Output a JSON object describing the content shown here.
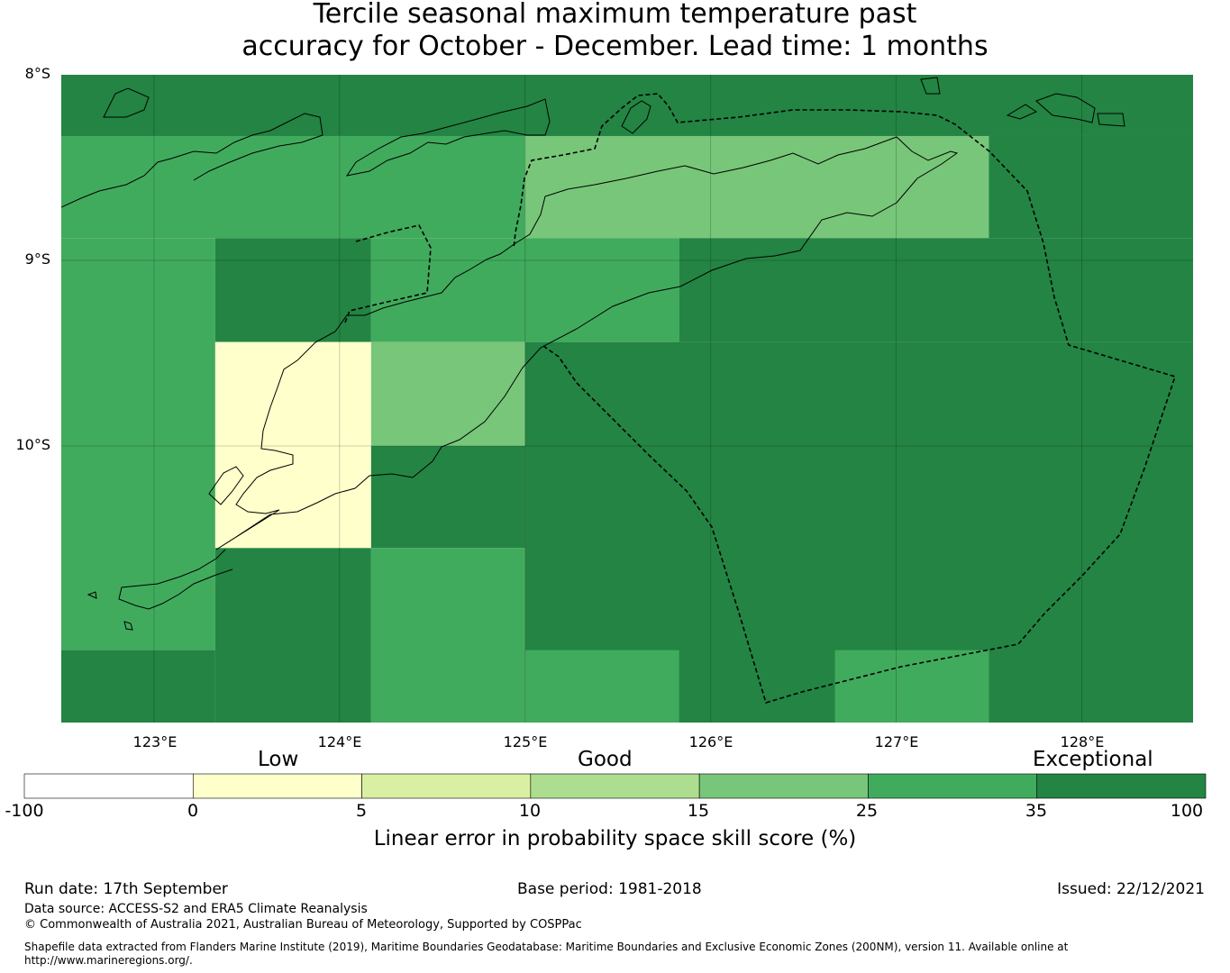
{
  "title_line1": "Tercile seasonal maximum temperature past",
  "title_line2": "accuracy for October - December. Lead time: 1 months",
  "colors": {
    "c0_5": "#ffffcc",
    "c15_25": "#78c679",
    "c25_35": "#41ab5d",
    "c35_100": "#238443",
    "colorbar": [
      "#ffffff",
      "#ffffcc",
      "#d9f0a3",
      "#addd8e",
      "#78c679",
      "#41ab5d",
      "#238443"
    ]
  },
  "lat_labels": [
    "8°S",
    "9°S",
    "10°S"
  ],
  "lon_labels": [
    "123°E",
    "124°E",
    "125°E",
    "126°E",
    "127°E",
    "128°E"
  ],
  "map": {
    "lon_range": [
      122.5,
      128.6
    ],
    "lat_range": [
      -11.5,
      -8.0
    ],
    "grid": true,
    "eez_boundary": "dashed",
    "cells": [
      {
        "lon": [
          122.5,
          128.6
        ],
        "lat": [
          -8.0,
          -8.33
        ],
        "class": "c35_100"
      },
      {
        "lon": [
          122.5,
          125.0
        ],
        "lat": [
          -8.33,
          -8.88
        ],
        "class": "c25_35"
      },
      {
        "lon": [
          125.0,
          127.5
        ],
        "lat": [
          -8.33,
          -8.88
        ],
        "class": "c15_25"
      },
      {
        "lon": [
          127.5,
          128.6
        ],
        "lat": [
          -8.33,
          -8.88
        ],
        "class": "c35_100"
      },
      {
        "lon": [
          122.5,
          123.33
        ],
        "lat": [
          -8.88,
          -11.1
        ],
        "class": "c25_35"
      },
      {
        "lon": [
          123.33,
          124.17
        ],
        "lat": [
          -8.88,
          -9.44
        ],
        "class": "c35_100"
      },
      {
        "lon": [
          124.17,
          125.83
        ],
        "lat": [
          -8.88,
          -9.44
        ],
        "class": "c25_35"
      },
      {
        "lon": [
          125.83,
          128.6
        ],
        "lat": [
          -8.88,
          -9.44
        ],
        "class": "c35_100"
      },
      {
        "lon": [
          123.33,
          124.17
        ],
        "lat": [
          -9.44,
          -10.55
        ],
        "class": "c0_5"
      },
      {
        "lon": [
          124.17,
          125.0
        ],
        "lat": [
          -9.44,
          -10.0
        ],
        "class": "c15_25"
      },
      {
        "lon": [
          125.0,
          128.6
        ],
        "lat": [
          -9.44,
          -11.5
        ],
        "class": "c35_100"
      },
      {
        "lon": [
          124.17,
          125.0
        ],
        "lat": [
          -10.0,
          -10.55
        ],
        "class": "c35_100"
      },
      {
        "lon": [
          123.33,
          124.17
        ],
        "lat": [
          -10.55,
          -11.5
        ],
        "class": "c35_100"
      },
      {
        "lon": [
          124.17,
          125.0
        ],
        "lat": [
          -10.55,
          -11.5
        ],
        "class": "c25_35"
      },
      {
        "lon": [
          125.0,
          125.83
        ],
        "lat": [
          -11.1,
          -11.5
        ],
        "class": "c25_35"
      },
      {
        "lon": [
          122.5,
          123.33
        ],
        "lat": [
          -11.1,
          -11.5
        ],
        "class": "c35_100"
      },
      {
        "lon": [
          126.67,
          127.5
        ],
        "lat": [
          -11.1,
          -11.5
        ],
        "class": "c25_35"
      }
    ]
  },
  "colorbar": {
    "words": [
      "Low",
      "Good",
      "Exceptional"
    ],
    "ticks": [
      "-100",
      "0",
      "5",
      "10",
      "15",
      "25",
      "35",
      "100"
    ],
    "label": "Linear error in probability space skill score (%)"
  },
  "footer": {
    "run_date": "Run date: 17th September",
    "base_period": "Base period: 1981-2018",
    "issued": "Issued: 22/12/2021",
    "data_source": "Data source: ACCESS-S2 and ERA5 Climate Reanalysis",
    "copyright": "© Commonwealth of Australia 2021, Australian Bureau of Meteorology, Supported by COSPPac",
    "shapefile_line1": "Shapefile data extracted from Flanders Marine Institute (2019), Maritime Boundaries Geodatabase: Maritime Boundaries and Exclusive Economic Zones (200NM), version 11. Available online at",
    "shapefile_line2": "http://www.marineregions.org/."
  }
}
